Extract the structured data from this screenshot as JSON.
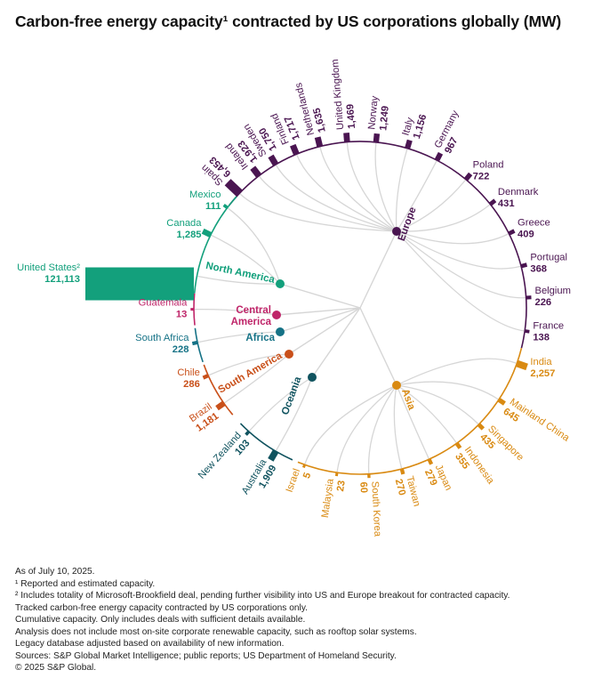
{
  "title": "Carbon-free energy capacity¹ contracted by US corporations globally (MW)",
  "colors": {
    "Europe": "#4a1551",
    "North America": "#13a07c",
    "Central America": "#bf2569",
    "Africa": "#157286",
    "South America": "#c9501a",
    "Oceania": "#10535f",
    "Asia": "#d98a12",
    "link": "#d6d6d6"
  },
  "chart_data": {
    "type": "radial-bar",
    "unit": "MW",
    "regions": [
      {
        "name": "Europe",
        "label": "Europe",
        "countries": [
          {
            "name": "Spain",
            "value": 6453,
            "value_label": "6,453"
          },
          {
            "name": "Ireland",
            "value": 1923,
            "value_label": "1,923"
          },
          {
            "name": "Sweden",
            "value": 1750,
            "value_label": "1,750"
          },
          {
            "name": "Finland",
            "value": 1717,
            "value_label": "1,717"
          },
          {
            "name": "Netherlands",
            "value": 1635,
            "value_label": "1,635"
          },
          {
            "name": "United Kingdom",
            "value": 1469,
            "value_label": "1,469"
          },
          {
            "name": "Norway",
            "value": 1249,
            "value_label": "1,249"
          },
          {
            "name": "Italy",
            "value": 1156,
            "value_label": "1,156"
          },
          {
            "name": "Germany",
            "value": 967,
            "value_label": "967"
          },
          {
            "name": "Poland",
            "value": 722,
            "value_label": "722"
          },
          {
            "name": "Denmark",
            "value": 431,
            "value_label": "431"
          },
          {
            "name": "Greece",
            "value": 409,
            "value_label": "409"
          },
          {
            "name": "Portugal",
            "value": 368,
            "value_label": "368"
          },
          {
            "name": "Belgium",
            "value": 226,
            "value_label": "226"
          },
          {
            "name": "France",
            "value": 138,
            "value_label": "138"
          }
        ]
      },
      {
        "name": "Asia",
        "label": "Asia",
        "countries": [
          {
            "name": "India",
            "value": 2257,
            "value_label": "2,257"
          },
          {
            "name": "Mainland China",
            "value": 645,
            "value_label": "645"
          },
          {
            "name": "Singapore",
            "value": 435,
            "value_label": "435"
          },
          {
            "name": "Indonesia",
            "value": 355,
            "value_label": "355"
          },
          {
            "name": "Japan",
            "value": 279,
            "value_label": "279"
          },
          {
            "name": "Taiwan",
            "value": 270,
            "value_label": "270"
          },
          {
            "name": "South Korea",
            "value": 60,
            "value_label": "60"
          },
          {
            "name": "Malaysia",
            "value": 23,
            "value_label": "23"
          },
          {
            "name": "Israel",
            "value": 5,
            "value_label": "5"
          }
        ]
      },
      {
        "name": "Oceania",
        "label": "Oceania",
        "countries": [
          {
            "name": "Australia",
            "value": 1909,
            "value_label": "1,909"
          },
          {
            "name": "New Zealand",
            "value": 103,
            "value_label": "103"
          }
        ]
      },
      {
        "name": "South America",
        "label": "South America",
        "countries": [
          {
            "name": "Brazil",
            "value": 1181,
            "value_label": "1,181"
          },
          {
            "name": "Chile",
            "value": 286,
            "value_label": "286"
          }
        ]
      },
      {
        "name": "Africa",
        "label": "Africa",
        "countries": [
          {
            "name": "South Africa",
            "value": 228,
            "value_label": "228"
          }
        ]
      },
      {
        "name": "Central America",
        "label": "Central America",
        "countries": [
          {
            "name": "Guatemala",
            "value": 13,
            "value_label": "13"
          }
        ]
      },
      {
        "name": "North America",
        "label": "North America",
        "countries": [
          {
            "name": "United States²",
            "value": 121113,
            "value_label": "121,113"
          },
          {
            "name": "Canada",
            "value": 1285,
            "value_label": "1,285"
          },
          {
            "name": "Mexico",
            "value": 111,
            "value_label": "111"
          }
        ]
      }
    ]
  },
  "footnotes": [
    "As of July 10, 2025.",
    "¹ Reported and estimated capacity.",
    "² Includes totality of Microsoft-Brookfield deal, pending further visibility into US and Europe breakout for contracted capacity.",
    "Tracked carbon-free energy capacity contracted by US corporations only.",
    "Cumulative capacity. Only includes deals with sufficient details available.",
    "Analysis does not include most on-site corporate renewable capacity, such as rooftop solar systems.",
    "Legacy database adjusted based on availability of new information.",
    "Sources: S&P Global Market Intelligence; public reports; US Department of Homeland Security.",
    "© 2025 S&P Global."
  ]
}
